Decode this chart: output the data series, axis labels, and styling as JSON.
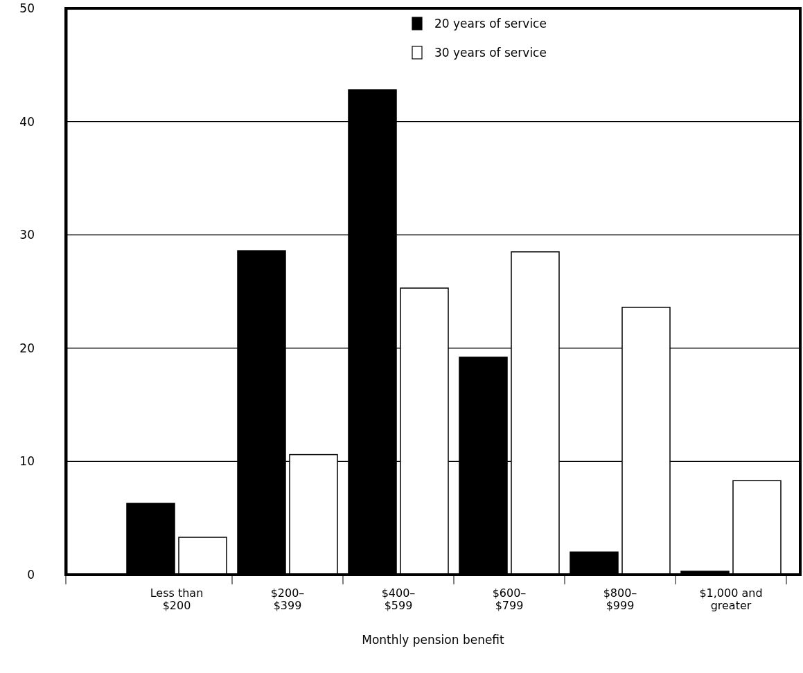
{
  "chart_data": {
    "type": "bar",
    "xlabel": "Monthly pension benefit",
    "categories": [
      "Less than\n$200",
      "$200–\n$399",
      "$400–\n$599",
      "$600–\n$799",
      "$800–\n$999",
      "$1,000 and\ngreater"
    ],
    "series": [
      {
        "name": "20 years of service",
        "color": "#000000",
        "values": [
          6.3,
          28.6,
          42.8,
          19.2,
          2.0,
          0.3
        ]
      },
      {
        "name": "30 years of service",
        "color": "#ffffff",
        "values": [
          3.3,
          10.6,
          25.3,
          28.5,
          23.6,
          8.3
        ]
      }
    ],
    "ylim": [
      0,
      50
    ],
    "yticks": [
      0,
      10,
      20,
      30,
      40,
      50
    ],
    "grid": "y",
    "legend": "top right"
  }
}
